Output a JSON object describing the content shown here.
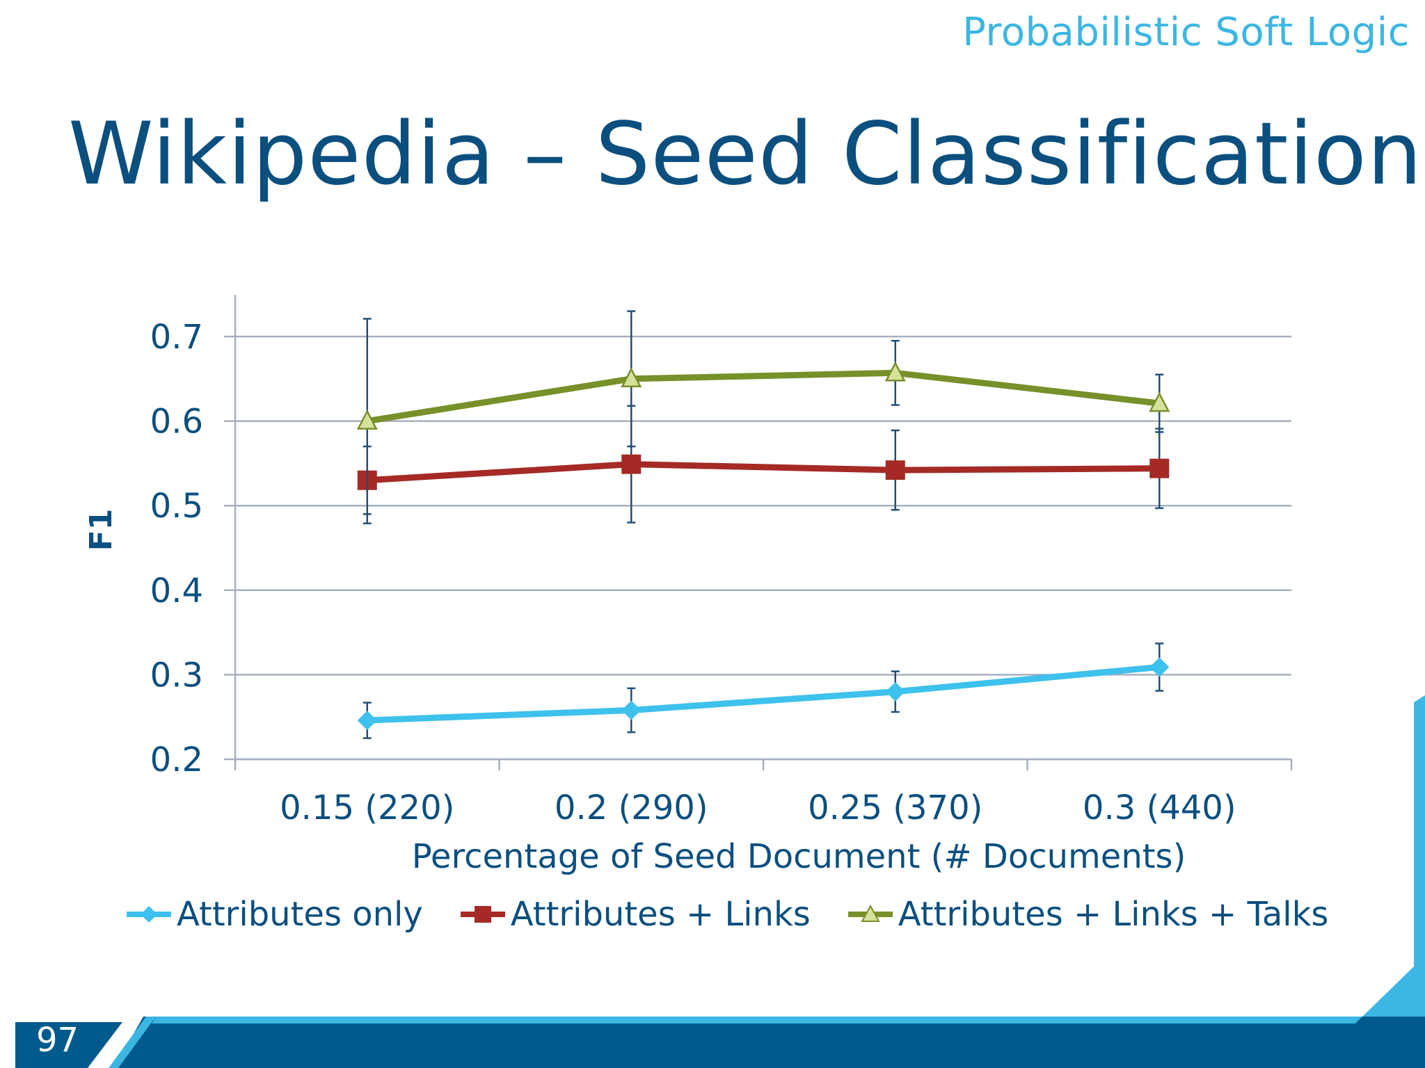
{
  "slide": {
    "brand": "Probabilistic Soft Logic",
    "title": "Wikipedia – Seed Classification",
    "page_number": "97"
  },
  "colors": {
    "title": "#0b4f7f",
    "brand": "#3cb6e3",
    "footer_dark": "#005b8c",
    "footer_light": "#3cb6e3"
  },
  "chart_data": {
    "type": "line",
    "title": "",
    "xlabel": "Percentage of Seed Document (# Documents)",
    "ylabel": "F1",
    "categories": [
      "0.15 (220)",
      "0.2 (290)",
      "0.25 (370)",
      "0.3 (440)"
    ],
    "ylim": [
      0.2,
      0.7
    ],
    "yticks": [
      0.2,
      0.3,
      0.4,
      0.5,
      0.6,
      0.7
    ],
    "ytick_labels": [
      "0.2",
      "0.3",
      "0.4",
      "0.5",
      "0.6",
      "0.7"
    ],
    "grid": true,
    "legend_position": "bottom",
    "series": [
      {
        "name": "Attributes only",
        "color": "#3ec1ec",
        "marker": "diamond",
        "values": [
          0.246,
          0.258,
          0.28,
          0.309
        ],
        "error": [
          0.021,
          0.026,
          0.024,
          0.028
        ]
      },
      {
        "name": "Attributes + Links",
        "color": "#a52a25",
        "marker": "square",
        "values": [
          0.53,
          0.549,
          0.542,
          0.544
        ],
        "error": [
          0.04,
          0.069,
          0.047,
          0.047
        ]
      },
      {
        "name": "Attributes + Links + Talks",
        "color": "#77902a",
        "marker": "triangle",
        "values": [
          0.6,
          0.65,
          0.657,
          0.621
        ],
        "error": [
          0.121,
          0.08,
          0.038,
          0.034
        ]
      }
    ]
  }
}
